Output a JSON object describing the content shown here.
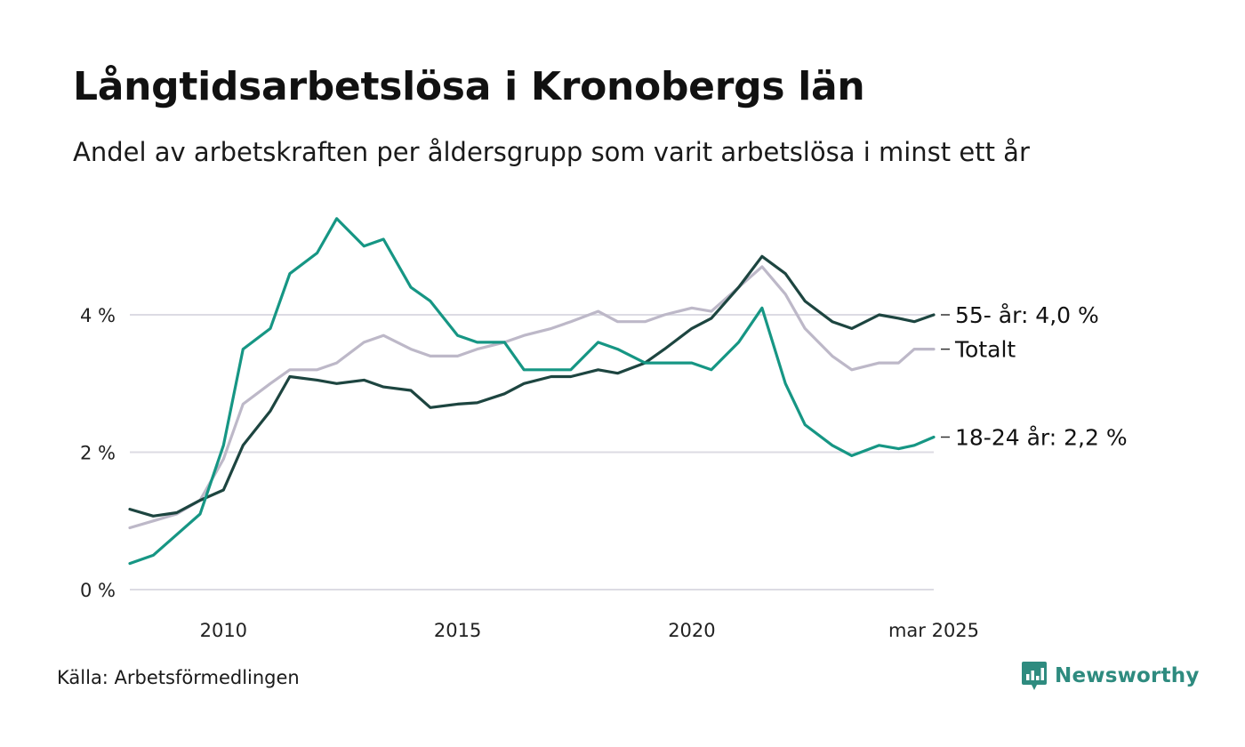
{
  "header": {
    "title": "Långtidsarbetslösa i Kronobergs län",
    "subtitle": "Andel av arbetskraften per åldersgrupp som varit arbetslösa i minst ett år"
  },
  "footer": {
    "source": "Källa: Arbetsförmedlingen",
    "brand": "Newsworthy",
    "brand_icon": "bar-chart-speech-icon",
    "brand_color": "#2e8b7f"
  },
  "chart_data": {
    "type": "line",
    "x_range": [
      "2008-01",
      "2025-03"
    ],
    "x_ticks": [
      {
        "x": "2010-01",
        "label": "2010"
      },
      {
        "x": "2015-01",
        "label": "2015"
      },
      {
        "x": "2020-01",
        "label": "2020"
      },
      {
        "x": "2025-03",
        "label": "mar 2025"
      }
    ],
    "y_ticks": [
      {
        "value": 0,
        "label": "0 %"
      },
      {
        "value": 2,
        "label": "2 %"
      },
      {
        "value": 4,
        "label": "4 %"
      }
    ],
    "ylim": [
      0,
      5.6
    ],
    "grid": "horizontal",
    "series": [
      {
        "key": "total",
        "color": "#bdb8c8",
        "end_label": "Totalt",
        "points": [
          [
            "2008-01",
            0.9
          ],
          [
            "2008-07",
            1.0
          ],
          [
            "2009-01",
            1.1
          ],
          [
            "2009-07",
            1.3
          ],
          [
            "2010-01",
            1.9
          ],
          [
            "2010-06",
            2.7
          ],
          [
            "2011-01",
            3.0
          ],
          [
            "2011-06",
            3.2
          ],
          [
            "2012-01",
            3.2
          ],
          [
            "2012-06",
            3.3
          ],
          [
            "2013-01",
            3.6
          ],
          [
            "2013-06",
            3.7
          ],
          [
            "2014-01",
            3.5
          ],
          [
            "2014-06",
            3.4
          ],
          [
            "2015-01",
            3.4
          ],
          [
            "2015-06",
            3.5
          ],
          [
            "2016-01",
            3.6
          ],
          [
            "2016-06",
            3.7
          ],
          [
            "2017-01",
            3.8
          ],
          [
            "2017-06",
            3.9
          ],
          [
            "2018-01",
            4.05
          ],
          [
            "2018-06",
            3.9
          ],
          [
            "2019-01",
            3.9
          ],
          [
            "2019-06",
            4.0
          ],
          [
            "2020-01",
            4.1
          ],
          [
            "2020-06",
            4.05
          ],
          [
            "2021-01",
            4.4
          ],
          [
            "2021-07",
            4.7
          ],
          [
            "2022-01",
            4.3
          ],
          [
            "2022-06",
            3.8
          ],
          [
            "2023-01",
            3.4
          ],
          [
            "2023-06",
            3.2
          ],
          [
            "2024-01",
            3.3
          ],
          [
            "2024-06",
            3.3
          ],
          [
            "2024-10",
            3.5
          ],
          [
            "2025-03",
            3.5
          ]
        ]
      },
      {
        "key": "age_55",
        "color": "#1d4540",
        "end_label": "55- år: 4,0 %",
        "points": [
          [
            "2008-01",
            1.17
          ],
          [
            "2008-07",
            1.07
          ],
          [
            "2009-01",
            1.12
          ],
          [
            "2009-07",
            1.3
          ],
          [
            "2010-01",
            1.45
          ],
          [
            "2010-06",
            2.1
          ],
          [
            "2011-01",
            2.6
          ],
          [
            "2011-06",
            3.1
          ],
          [
            "2012-01",
            3.05
          ],
          [
            "2012-06",
            3.0
          ],
          [
            "2013-01",
            3.05
          ],
          [
            "2013-06",
            2.95
          ],
          [
            "2014-01",
            2.9
          ],
          [
            "2014-06",
            2.65
          ],
          [
            "2015-01",
            2.7
          ],
          [
            "2015-06",
            2.72
          ],
          [
            "2016-01",
            2.85
          ],
          [
            "2016-06",
            3.0
          ],
          [
            "2017-01",
            3.1
          ],
          [
            "2017-06",
            3.1
          ],
          [
            "2018-01",
            3.2
          ],
          [
            "2018-06",
            3.15
          ],
          [
            "2019-01",
            3.3
          ],
          [
            "2019-06",
            3.5
          ],
          [
            "2020-01",
            3.8
          ],
          [
            "2020-06",
            3.95
          ],
          [
            "2021-01",
            4.4
          ],
          [
            "2021-07",
            4.85
          ],
          [
            "2022-01",
            4.6
          ],
          [
            "2022-06",
            4.2
          ],
          [
            "2023-01",
            3.9
          ],
          [
            "2023-06",
            3.8
          ],
          [
            "2024-01",
            4.0
          ],
          [
            "2024-06",
            3.95
          ],
          [
            "2024-10",
            3.9
          ],
          [
            "2025-03",
            4.0
          ]
        ]
      },
      {
        "key": "age_18_24",
        "color": "#169684",
        "end_label": "18-24 år: 2,2 %",
        "points": [
          [
            "2008-01",
            0.38
          ],
          [
            "2008-07",
            0.5
          ],
          [
            "2009-01",
            0.8
          ],
          [
            "2009-07",
            1.1
          ],
          [
            "2010-01",
            2.1
          ],
          [
            "2010-06",
            3.5
          ],
          [
            "2011-01",
            3.8
          ],
          [
            "2011-06",
            4.6
          ],
          [
            "2012-01",
            4.9
          ],
          [
            "2012-06",
            5.4
          ],
          [
            "2013-01",
            5.0
          ],
          [
            "2013-06",
            5.1
          ],
          [
            "2014-01",
            4.4
          ],
          [
            "2014-06",
            4.2
          ],
          [
            "2015-01",
            3.7
          ],
          [
            "2015-06",
            3.6
          ],
          [
            "2016-01",
            3.6
          ],
          [
            "2016-06",
            3.2
          ],
          [
            "2017-01",
            3.2
          ],
          [
            "2017-06",
            3.2
          ],
          [
            "2018-01",
            3.6
          ],
          [
            "2018-06",
            3.5
          ],
          [
            "2019-01",
            3.3
          ],
          [
            "2019-06",
            3.3
          ],
          [
            "2020-01",
            3.3
          ],
          [
            "2020-06",
            3.2
          ],
          [
            "2021-01",
            3.6
          ],
          [
            "2021-07",
            4.1
          ],
          [
            "2022-01",
            3.0
          ],
          [
            "2022-06",
            2.4
          ],
          [
            "2023-01",
            2.1
          ],
          [
            "2023-06",
            1.95
          ],
          [
            "2024-01",
            2.1
          ],
          [
            "2024-06",
            2.05
          ],
          [
            "2024-10",
            2.1
          ],
          [
            "2025-03",
            2.22
          ]
        ]
      }
    ]
  }
}
